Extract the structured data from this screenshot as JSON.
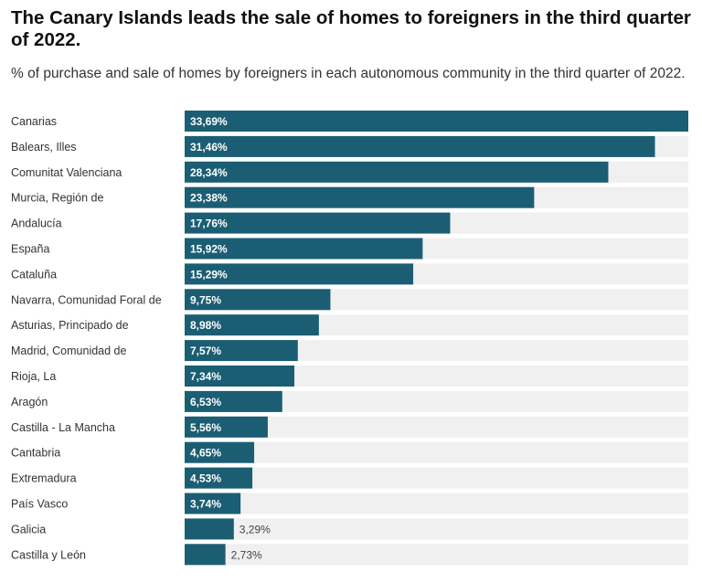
{
  "header": {
    "title": "The Canary Islands leads the sale of homes to foreigners in the third quarter of 2022.",
    "subtitle": "% of purchase and sale of homes by foreigners in each autonomous community in the third quarter of 2022."
  },
  "colors": {
    "bar": "#1b5e73",
    "track": "#f0f0f0"
  },
  "chart_data": {
    "type": "bar",
    "orientation": "horizontal",
    "title": "The Canary Islands leads the sale of homes to foreigners in the third quarter of 2022.",
    "subtitle": "% of purchase and sale of homes by foreigners in each autonomous community in the third quarter of 2022.",
    "xlabel": "",
    "ylabel": "",
    "xlim": [
      0,
      33.69
    ],
    "grid": false,
    "legend": "none",
    "categories": [
      "Canarias",
      "Balears, Illes",
      "Comunitat Valenciana",
      "Murcia, Región de",
      "Andalucía",
      "España",
      "Cataluña",
      "Navarra, Comunidad Foral de",
      "Asturias, Principado de",
      "Madrid, Comunidad de",
      "Rioja, La",
      "Aragón",
      "Castilla - La Mancha",
      "Cantabria",
      "Extremadura",
      "País Vasco",
      "Galicia",
      "Castilla y León"
    ],
    "values": [
      33.69,
      31.46,
      28.34,
      23.38,
      17.76,
      15.92,
      15.29,
      9.75,
      8.98,
      7.57,
      7.34,
      6.53,
      5.56,
      4.65,
      4.53,
      3.74,
      3.29,
      2.73
    ],
    "value_labels": [
      "33,69%",
      "31,46%",
      "28,34%",
      "23,38%",
      "17,76%",
      "15,92%",
      "15,29%",
      "9,75%",
      "8,98%",
      "7,57%",
      "7,34%",
      "6,53%",
      "5,56%",
      "4,65%",
      "4,53%",
      "3,74%",
      "3,29%",
      "2,73%"
    ]
  }
}
